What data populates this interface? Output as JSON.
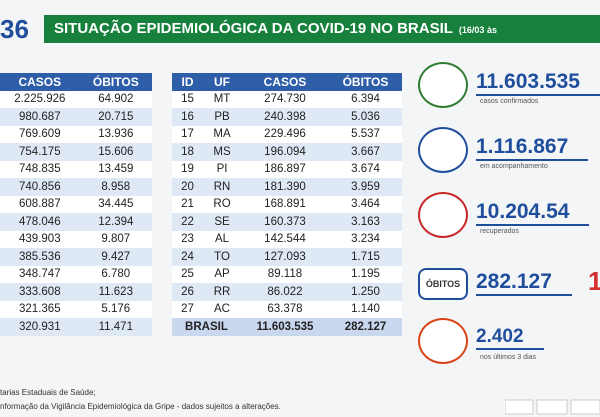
{
  "header": {
    "number": "36",
    "title": "SITUAÇÃO EPIDEMIOLÓGICA DA COVID-19 NO BRASIL",
    "date": "(16/03 às"
  },
  "left_table": {
    "header": [
      "CASOS",
      "ÓBITOS"
    ],
    "rows": [
      [
        "2.225.926",
        "64.902"
      ],
      [
        "980.687",
        "20.715"
      ],
      [
        "769.609",
        "13.936"
      ],
      [
        "754.175",
        "15.606"
      ],
      [
        "748.835",
        "13.459"
      ],
      [
        "740.856",
        "8.958"
      ],
      [
        "608.887",
        "34.445"
      ],
      [
        "478.046",
        "12.394"
      ],
      [
        "439.903",
        "9.807"
      ],
      [
        "385.536",
        "9.427"
      ],
      [
        "348.747",
        "6.780"
      ],
      [
        "333.608",
        "11.623"
      ],
      [
        "321.365",
        "5.176"
      ],
      [
        "320.931",
        "11.471"
      ]
    ]
  },
  "right_table": {
    "header": [
      "ID",
      "UF",
      "CASOS",
      "ÓBITOS"
    ],
    "rows": [
      [
        "15",
        "MT",
        "274.730",
        "6.394"
      ],
      [
        "16",
        "PB",
        "240.398",
        "5.036"
      ],
      [
        "17",
        "MA",
        "229.496",
        "5.537"
      ],
      [
        "18",
        "MS",
        "196.094",
        "3.667"
      ],
      [
        "19",
        "PI",
        "186.897",
        "3.674"
      ],
      [
        "20",
        "RN",
        "181.390",
        "3.959"
      ],
      [
        "21",
        "RO",
        "168.891",
        "3.464"
      ],
      [
        "22",
        "SE",
        "160.373",
        "3.163"
      ],
      [
        "23",
        "AL",
        "142.544",
        "3.234"
      ],
      [
        "24",
        "TO",
        "127.093",
        "1.715"
      ],
      [
        "25",
        "AP",
        "89.118",
        "1.195"
      ],
      [
        "26",
        "RR",
        "86.022",
        "1.250"
      ],
      [
        "27",
        "AC",
        "63.378",
        "1.140"
      ]
    ],
    "total": [
      "BRASIL",
      "11.603.535",
      "282.127"
    ]
  },
  "cards": [
    {
      "value": "11.603.535",
      "label": "casos confirmados"
    },
    {
      "value": "1.116.867",
      "label": "em acompanhamento"
    },
    {
      "value": "10.204.54",
      "label": "recuperados"
    },
    {
      "tag": "ÓBITOS",
      "value": "282.127",
      "extra": "1"
    },
    {
      "value": "2.402",
      "label": "nos últimos 3 dias"
    }
  ],
  "footer": [
    "tarias Estaduais de Saúde;",
    "nformação da Vigilância Epidemiológica da Gripe - dados sujeitos a alterações."
  ]
}
